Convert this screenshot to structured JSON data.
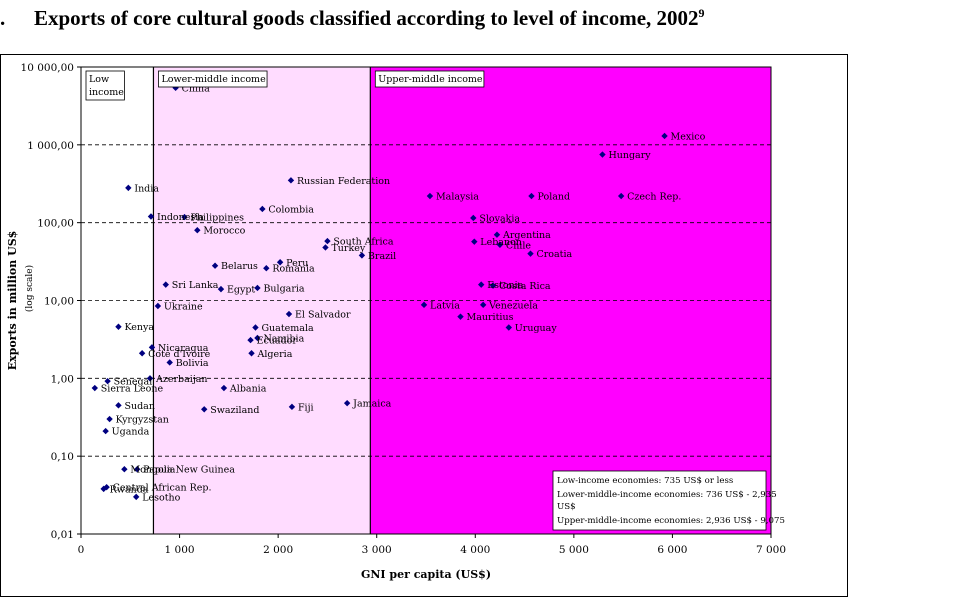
{
  "heading": {
    "number": ".",
    "title": "Exports of core cultural goods classified according to level of income, 2002",
    "footnote": "9"
  },
  "chart_data": {
    "type": "scatter",
    "xlabel": "GNI per capita (US$)",
    "ylabel": "Exports in million US$",
    "ylabel_sub": "(log scale)",
    "x_scale": "linear",
    "y_scale": "log",
    "xlim": [
      0,
      7000
    ],
    "ylim": [
      0.01,
      10000
    ],
    "x_ticks": [
      0,
      1000,
      2000,
      3000,
      4000,
      5000,
      6000,
      7000
    ],
    "x_tick_labels": [
      "0",
      "1 000",
      "2 000",
      "3 000",
      "4 000",
      "5 000",
      "6 000",
      "7 000"
    ],
    "y_ticks": [
      0.01,
      0.1,
      1,
      10,
      100,
      1000,
      10000
    ],
    "y_tick_labels": [
      "0,01",
      "0,10",
      "1,00",
      "10,00",
      "100,00",
      "1 000,00",
      "10 000,00"
    ],
    "grid": "horizontal dashed",
    "marker_color": "#000080",
    "bands": [
      {
        "label": "Low income",
        "label_lines": [
          "Low",
          "income"
        ],
        "x_range": [
          0,
          735
        ],
        "color": "#ffffff"
      },
      {
        "label": "Lower-middle income",
        "label_lines": [
          "Lower-middle income"
        ],
        "x_range": [
          735,
          2935
        ],
        "color": "#ffdcff"
      },
      {
        "label": "Upper-middle income",
        "label_lines": [
          "Upper-middle income"
        ],
        "x_range": [
          2935,
          7000
        ],
        "color": "#ff00ff"
      }
    ],
    "points": [
      {
        "label": "China",
        "x": 960,
        "y": 5400
      },
      {
        "label": "Mexico",
        "x": 5920,
        "y": 1300
      },
      {
        "label": "Hungary",
        "x": 5290,
        "y": 750
      },
      {
        "label": "Russian Federation",
        "x": 2130,
        "y": 350
      },
      {
        "label": "India",
        "x": 480,
        "y": 280
      },
      {
        "label": "Malaysia",
        "x": 3540,
        "y": 220
      },
      {
        "label": "Poland",
        "x": 4570,
        "y": 220
      },
      {
        "label": "Czech Rep.",
        "x": 5480,
        "y": 220
      },
      {
        "label": "Colombia",
        "x": 1840,
        "y": 150
      },
      {
        "label": "Indonesia",
        "x": 710,
        "y": 120
      },
      {
        "label": "Philippines",
        "x": 1050,
        "y": 118
      },
      {
        "label": "Slovakia",
        "x": 3980,
        "y": 115
      },
      {
        "label": "Morocco",
        "x": 1180,
        "y": 80
      },
      {
        "label": "Argentina",
        "x": 4220,
        "y": 70
      },
      {
        "label": "South Africa",
        "x": 2500,
        "y": 58
      },
      {
        "label": "Lebanon",
        "x": 3990,
        "y": 57
      },
      {
        "label": "Chile",
        "x": 4250,
        "y": 52
      },
      {
        "label": "Turkey",
        "x": 2480,
        "y": 48
      },
      {
        "label": "Croatia",
        "x": 4560,
        "y": 40
      },
      {
        "label": "Brazil",
        "x": 2850,
        "y": 38
      },
      {
        "label": "Peru",
        "x": 2020,
        "y": 31
      },
      {
        "label": "Belarus",
        "x": 1360,
        "y": 28
      },
      {
        "label": "Romania",
        "x": 1880,
        "y": 26
      },
      {
        "label": "Sri Lanka",
        "x": 860,
        "y": 16
      },
      {
        "label": "Estonia",
        "x": 4060,
        "y": 16
      },
      {
        "label": "Costa Rica",
        "x": 4180,
        "y": 15.5
      },
      {
        "label": "Bulgaria",
        "x": 1790,
        "y": 14.5
      },
      {
        "label": "Egypt",
        "x": 1420,
        "y": 14
      },
      {
        "label": "Ukraine",
        "x": 780,
        "y": 8.5
      },
      {
        "label": "Latvia",
        "x": 3480,
        "y": 8.8
      },
      {
        "label": "Venezuela",
        "x": 4080,
        "y": 8.8
      },
      {
        "label": "El Salvador",
        "x": 2110,
        "y": 6.7
      },
      {
        "label": "Mauritius",
        "x": 3850,
        "y": 6.2
      },
      {
        "label": "Kenya",
        "x": 380,
        "y": 4.6
      },
      {
        "label": "Guatemala",
        "x": 1770,
        "y": 4.5
      },
      {
        "label": "Uruguay",
        "x": 4340,
        "y": 4.5
      },
      {
        "label": "Namibia",
        "x": 1790,
        "y": 3.3
      },
      {
        "label": "Ecuador",
        "x": 1720,
        "y": 3.1
      },
      {
        "label": "Nicaragua",
        "x": 720,
        "y": 2.5
      },
      {
        "label": "Cote d'Ivoire",
        "x": 620,
        "y": 2.1
      },
      {
        "label": "Algeria",
        "x": 1730,
        "y": 2.1
      },
      {
        "label": "Bolivia",
        "x": 900,
        "y": 1.6
      },
      {
        "label": "Azerbaijan",
        "x": 700,
        "y": 1.0
      },
      {
        "label": "Senegal",
        "x": 270,
        "y": 0.92
      },
      {
        "label": "Sierra Leone",
        "x": 140,
        "y": 0.75
      },
      {
        "label": "Albania",
        "x": 1450,
        "y": 0.75
      },
      {
        "label": "Jamaica",
        "x": 2700,
        "y": 0.48
      },
      {
        "label": "Sudan",
        "x": 380,
        "y": 0.45
      },
      {
        "label": "Swaziland",
        "x": 1250,
        "y": 0.4
      },
      {
        "label": "Fiji",
        "x": 2140,
        "y": 0.43
      },
      {
        "label": "Kyrgyzstan",
        "x": 290,
        "y": 0.3
      },
      {
        "label": "Uganda",
        "x": 250,
        "y": 0.21
      },
      {
        "label": "Mongolia",
        "x": 440,
        "y": 0.068
      },
      {
        "label": "Papua New Guinea",
        "x": 570,
        "y": 0.068
      },
      {
        "label": "Central African Rep.",
        "x": 260,
        "y": 0.04
      },
      {
        "label": "Lesotho",
        "x": 560,
        "y": 0.03
      },
      {
        "label": "Rwanda",
        "x": 230,
        "y": 0.038
      }
    ],
    "legend_note": [
      "Low-income economies: 735 US$ or less",
      "Lower-middle-income economies: 736 US$ - 2,935 US$",
      "Upper-middle-income economies: 2,936 US$ - 9,075"
    ]
  }
}
